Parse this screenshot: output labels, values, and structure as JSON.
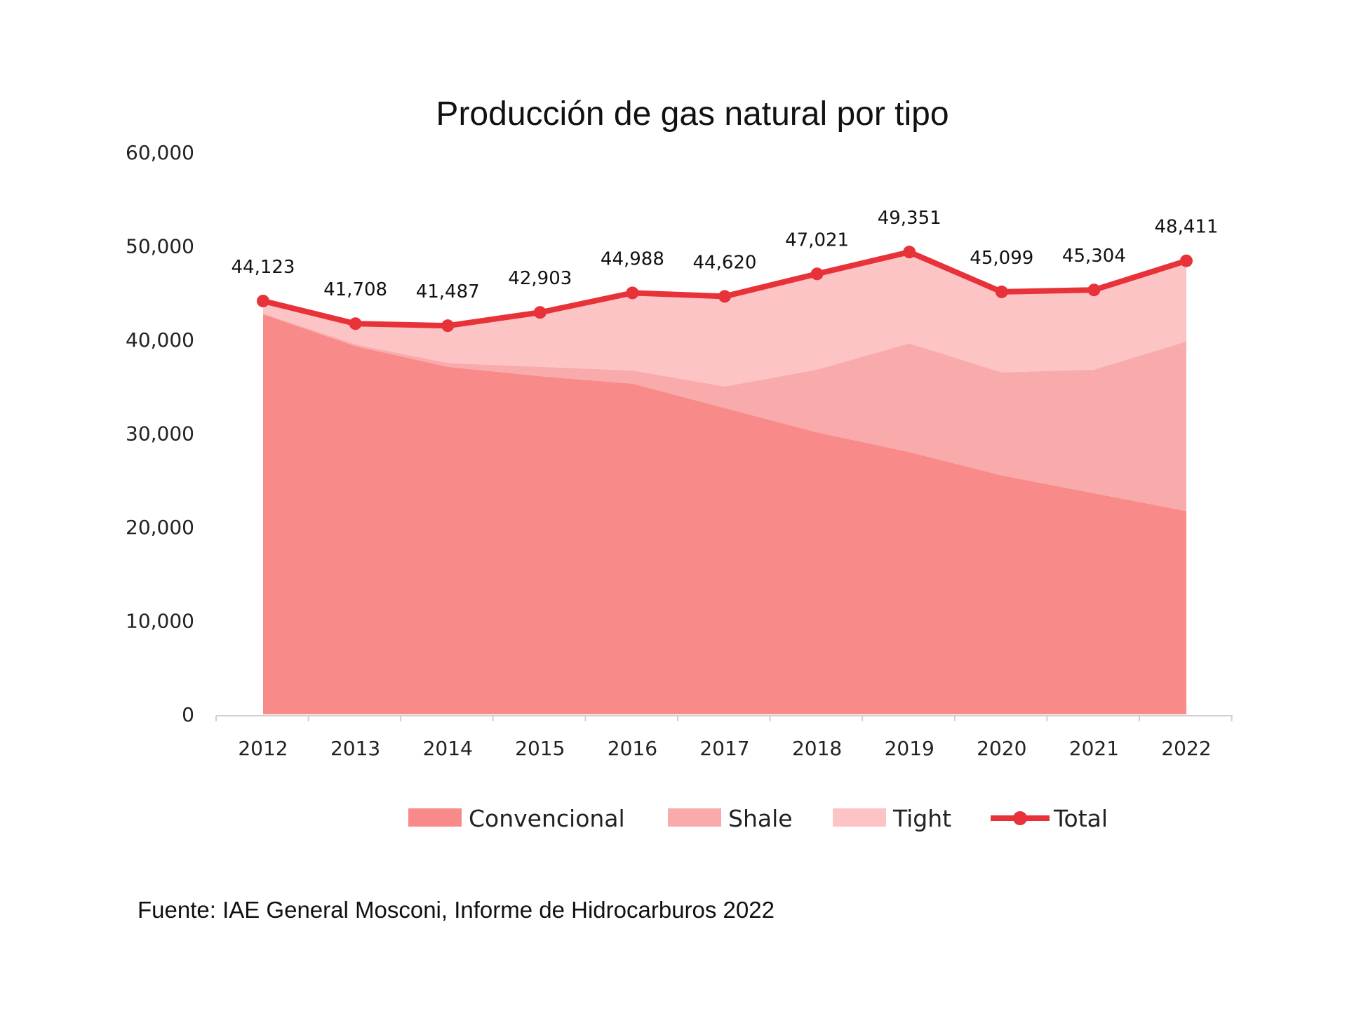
{
  "chart_data": {
    "type": "area",
    "stacked": true,
    "title": "Producción de gas natural por tipo",
    "xlabel": "",
    "ylabel": "",
    "ylim": [
      0,
      60000
    ],
    "yticks": [
      "0",
      "10,000",
      "20,000",
      "30,000",
      "40,000",
      "50,000",
      "60,000"
    ],
    "categories": [
      "2012",
      "2013",
      "2014",
      "2015",
      "2016",
      "2017",
      "2018",
      "2019",
      "2020",
      "2021",
      "2022"
    ],
    "series": [
      {
        "name": "Convencional",
        "kind": "area",
        "color": "#f88a89",
        "values": [
          42700,
          39300,
          37100,
          36100,
          35300,
          32700,
          30100,
          28000,
          25500,
          23600,
          21700
        ]
      },
      {
        "name": "Shale",
        "kind": "area",
        "color": "#f9aaaa",
        "values": [
          100,
          200,
          400,
          1000,
          1400,
          2300,
          6700,
          11600,
          11000,
          13200,
          18100
        ]
      },
      {
        "name": "Tight",
        "kind": "area",
        "color": "#fcc4c5",
        "values": [
          1323,
          2208,
          3987,
          5803,
          8288,
          9620,
          10221,
          9751,
          8599,
          8504,
          8611
        ]
      },
      {
        "name": "Total",
        "kind": "line",
        "color": "#e8323a",
        "values": [
          44123,
          41708,
          41487,
          42903,
          44988,
          44620,
          47021,
          49351,
          45099,
          45304,
          48411
        ]
      }
    ],
    "data_labels": [
      "44,123",
      "41,708",
      "41,487",
      "42,903",
      "44,988",
      "44,620",
      "47,021",
      "49,351",
      "45,099",
      "45,304",
      "48,411"
    ],
    "legend": [
      "Convencional",
      "Shale",
      "Tight",
      "Total"
    ],
    "legend_position": "bottom",
    "grid": false
  },
  "source": "Fuente: IAE General Mosconi, Informe de Hidrocarburos 2022"
}
